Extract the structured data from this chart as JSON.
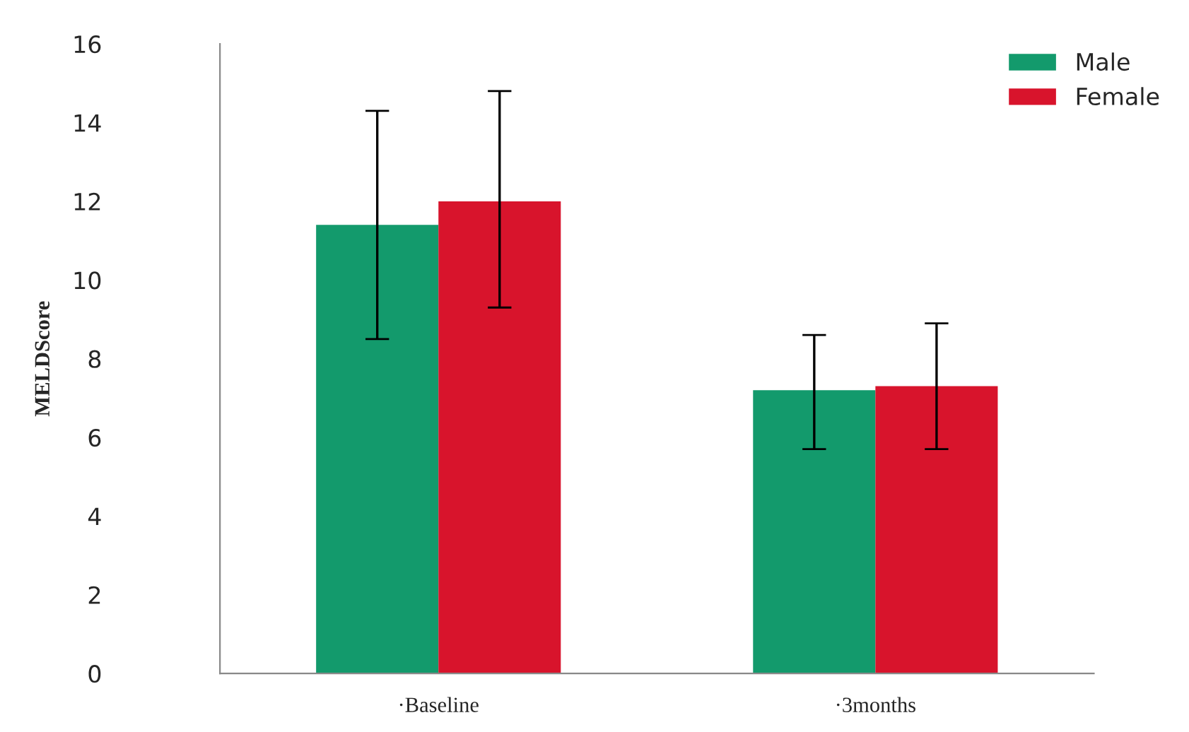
{
  "chart_data": {
    "type": "bar",
    "ylabel": "MELDScore",
    "categories": [
      "·Baseline",
      "·3months"
    ],
    "series": [
      {
        "name": "Male",
        "color": "#139a6c",
        "values": [
          11.4,
          7.2
        ],
        "errors": [
          [
            8.5,
            14.3
          ],
          [
            5.7,
            8.6
          ]
        ]
      },
      {
        "name": "Female",
        "color": "#d8142c",
        "values": [
          12.0,
          7.3
        ],
        "errors": [
          [
            9.3,
            14.8
          ],
          [
            5.7,
            8.9
          ]
        ]
      }
    ],
    "ylim": [
      0,
      16
    ],
    "yticks": [
      0,
      2,
      4,
      6,
      8,
      10,
      12,
      14,
      16
    ],
    "grid": false,
    "legend": "top right"
  }
}
